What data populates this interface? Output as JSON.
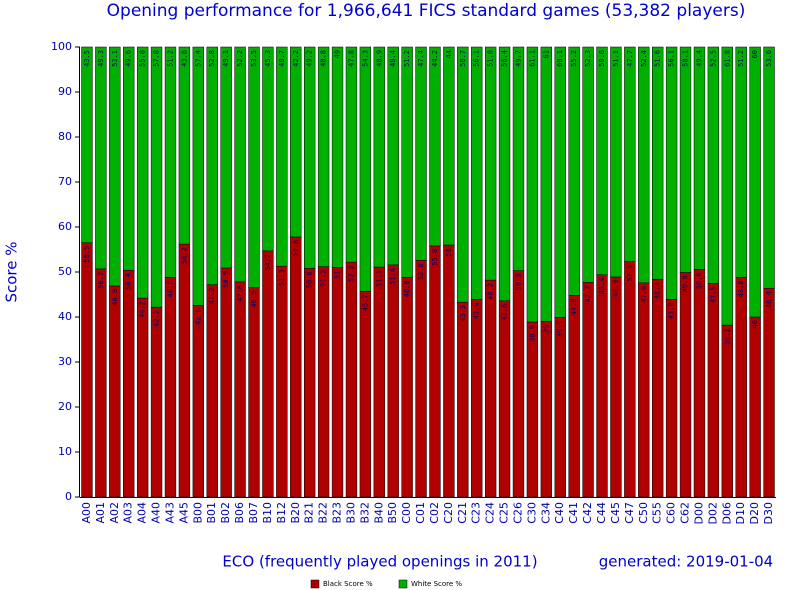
{
  "chart_data": {
    "type": "stacked_bar",
    "title": "Opening performance for 1,966,641 FICS standard games (53,382 players)",
    "x_label": "ECO (frequently played openings in 2011)",
    "y_label": "Score %",
    "note": "generated: 2019-01-04",
    "categories": [
      "A00",
      "A01",
      "A02",
      "A03",
      "A04",
      "A40",
      "A43",
      "A45",
      "B00",
      "B01",
      "B02",
      "B06",
      "B07",
      "B10",
      "B12",
      "B20",
      "B21",
      "B22",
      "B23",
      "B30",
      "B32",
      "B40",
      "B50",
      "C00",
      "C01",
      "C02",
      "C20",
      "C21",
      "C23",
      "C24",
      "C25",
      "C26",
      "C30",
      "C34",
      "C40",
      "C41",
      "C42",
      "C44",
      "C45",
      "C47",
      "C50",
      "C55",
      "C60",
      "C62",
      "D00",
      "D02",
      "D06",
      "D10",
      "D20",
      "D30"
    ],
    "series": [
      {
        "name": "Black Score %",
        "color": "#b00000",
        "values": [
          56.5,
          50.7,
          46.9,
          50.4,
          44.2,
          42.2,
          48.8,
          56.2,
          42.6,
          47.2,
          50.9,
          47.8,
          46.5,
          54.7,
          51.3,
          57.8,
          50.8,
          51.2,
          51.0,
          52.2,
          45.7,
          51.1,
          51.6,
          48.8,
          52.6,
          55.8,
          56.0,
          43.3,
          43.9,
          48.2,
          43.6,
          50.3,
          38.9,
          39.0,
          39.9,
          44.8,
          47.7,
          49.4,
          48.9,
          52.3,
          47.6,
          48.4,
          43.9,
          49.9,
          50.6,
          47.5,
          38.2,
          48.8,
          40.0,
          46.4
        ]
      },
      {
        "name": "White Score %",
        "color": "#00b000",
        "values": [
          43.5,
          49.3,
          53.1,
          49.6,
          55.8,
          57.8,
          51.2,
          43.8,
          57.4,
          52.8,
          49.1,
          52.2,
          53.5,
          45.3,
          48.7,
          42.2,
          49.2,
          48.8,
          49.0,
          47.8,
          54.3,
          48.9,
          48.4,
          51.2,
          47.4,
          44.2,
          44.0,
          56.7,
          56.1,
          51.8,
          56.4,
          49.7,
          61.1,
          61.0,
          60.1,
          55.2,
          52.3,
          50.6,
          51.1,
          47.7,
          52.4,
          51.6,
          56.1,
          50.1,
          49.4,
          52.5,
          61.8,
          51.2,
          60.0,
          53.6
        ]
      }
    ],
    "ylim": [
      0,
      100
    ],
    "yticks": [
      0,
      10,
      20,
      30,
      40,
      50,
      60,
      70,
      80,
      90,
      100
    ]
  }
}
